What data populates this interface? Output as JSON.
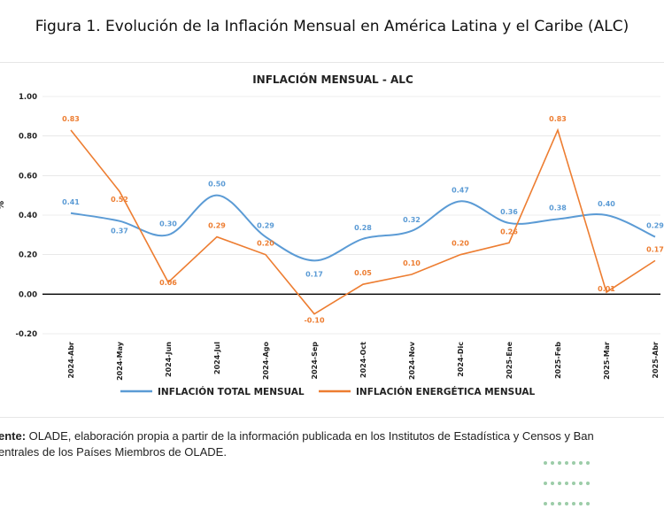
{
  "figure_title": "Figura 1. Evolución de la Inflación Mensual en América Latina y el Caribe (ALC)",
  "source": {
    "label": "ente:",
    "text_line1": " OLADE, elaboración propia a partir de la información publicada en los Institutos de Estadística y Censos y Ban",
    "text_line2": "entrales de los Países Miembros de OLADE."
  },
  "colors": {
    "total": "#5b9bd5",
    "energy": "#ed7d31",
    "grid": "#d9d9d9",
    "zero": "#000000"
  },
  "chart_data": {
    "type": "line",
    "title": "INFLACIÓN MENSUAL - ALC",
    "ylabel": "%",
    "xlabel": "",
    "ylim": [
      -0.2,
      1.0
    ],
    "yticks": [
      "-0.20",
      "0.00",
      "0.20",
      "0.40",
      "0.60",
      "0.80",
      "1.00"
    ],
    "categories": [
      "2024-Abr",
      "2024-May",
      "2024-Jun",
      "2024-Jul",
      "2024-Ago",
      "2024-Sep",
      "2024-Oct",
      "2024-Nov",
      "2024-Dic",
      "2025-Ene",
      "2025-Feb",
      "2025-Mar",
      "2025-Abr"
    ],
    "legend_position": "bottom",
    "series": [
      {
        "name": "INFLACIÓN TOTAL MENSUAL",
        "values": [
          0.41,
          0.37,
          0.3,
          0.5,
          0.29,
          0.17,
          0.28,
          0.32,
          0.47,
          0.36,
          0.38,
          0.4,
          0.29
        ],
        "labels": [
          "0.41",
          "0.37",
          "0.30",
          "0.50",
          "0.29",
          "0.17",
          "0.28",
          "0.32",
          "0.47",
          "0.36",
          "0.38",
          "0.40",
          "0.29"
        ]
      },
      {
        "name": "INFLACIÓN ENERGÉTICA MENSUAL",
        "values": [
          0.83,
          0.52,
          0.06,
          0.29,
          0.2,
          -0.1,
          0.05,
          0.1,
          0.2,
          0.26,
          0.83,
          0.01,
          0.17
        ],
        "labels": [
          "0.83",
          "0.52",
          "0.06",
          "0.29",
          "0.20",
          "-0.10",
          "0.05",
          "0.10",
          "0.20",
          "0.26",
          "0.83",
          "0.01",
          "0.17"
        ]
      }
    ]
  }
}
